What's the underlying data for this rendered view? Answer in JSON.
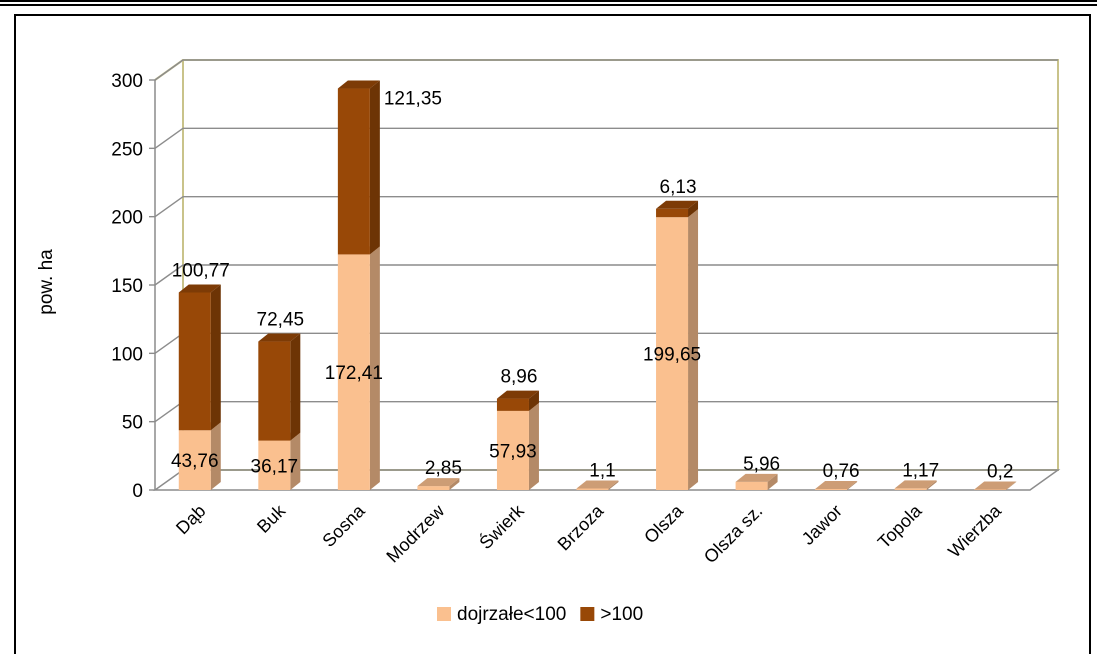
{
  "chart_data": {
    "type": "bar",
    "stacked": true,
    "three_d": true,
    "categories": [
      "Dąb",
      "Buk",
      "Sosna",
      "Modrzew",
      "Świerk",
      "Brzoza",
      "Olsza",
      "Olsza sz.",
      "Jawor",
      "Topola",
      "Wierzba"
    ],
    "series": [
      {
        "name": "dojrzałe<100",
        "color": "#FAC08F",
        "values": [
          43.76,
          36.17,
          172.41,
          2.85,
          57.93,
          1.1,
          199.65,
          5.96,
          0.76,
          1.17,
          0.2
        ],
        "labels": [
          "43,76",
          "36,17",
          "172,41",
          "2,85",
          "57,93",
          "1,1",
          "199,65",
          "5,96",
          "0,76",
          "1,17",
          "0,2"
        ]
      },
      {
        "name": ">100",
        "color": "#984807",
        "values": [
          100.77,
          72.45,
          121.35,
          0,
          8.96,
          0,
          6.13,
          0,
          0,
          0,
          0
        ],
        "labels": [
          "100,77",
          "72,45",
          "121,35",
          "",
          "8,96",
          "",
          "6,13",
          "",
          "",
          "",
          ""
        ]
      }
    ],
    "ylabel": "pow. ha",
    "ylim": [
      0,
      300
    ],
    "yticks": [
      "0",
      "50",
      "100",
      "150",
      "200",
      "250",
      "300"
    ],
    "grid": true,
    "legend_position": "bottom"
  }
}
